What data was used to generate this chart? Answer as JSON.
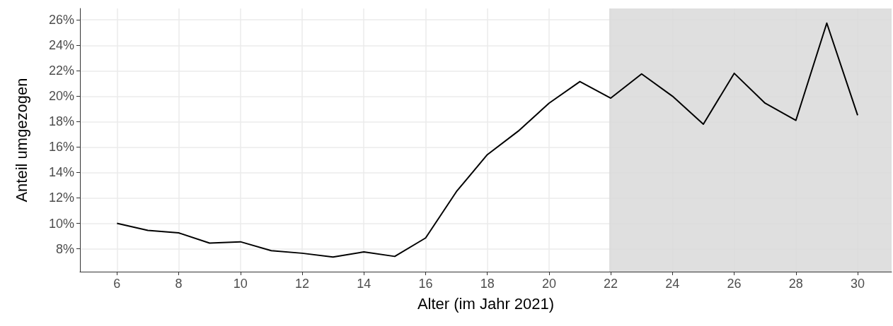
{
  "chart_data": {
    "type": "line",
    "xlabel": "Alter (im Jahr 2021)",
    "ylabel": "Anteil umgezogen",
    "x": [
      6,
      7,
      8,
      9,
      10,
      11,
      12,
      13,
      14,
      15,
      16,
      17,
      18,
      19,
      20,
      21,
      22,
      23,
      24,
      25,
      26,
      27,
      28,
      29,
      30
    ],
    "series": [
      {
        "color": "#000000",
        "values": [
          10.0,
          9.45,
          9.25,
          8.45,
          8.55,
          7.85,
          7.65,
          7.35,
          7.75,
          7.4,
          8.85,
          12.5,
          15.4,
          17.25,
          19.45,
          21.15,
          19.85,
          21.75,
          20.0,
          17.8,
          21.8,
          19.45,
          18.1,
          25.75,
          18.5
        ]
      }
    ],
    "xlim": [
      4.8,
      31.1
    ],
    "xticks": [
      6,
      8,
      10,
      12,
      14,
      16,
      18,
      20,
      22,
      24,
      26,
      28,
      30
    ],
    "ylim": [
      6.2,
      26.9
    ],
    "yticks": [
      {
        "value": 8,
        "label": "8%"
      },
      {
        "value": 10,
        "label": "10%"
      },
      {
        "value": 12,
        "label": "12%"
      },
      {
        "value": 14,
        "label": "14%"
      },
      {
        "value": 16,
        "label": "16%"
      },
      {
        "value": 18,
        "label": "18%"
      },
      {
        "value": 20,
        "label": "20%"
      },
      {
        "value": 22,
        "label": "22%"
      },
      {
        "value": 24,
        "label": "24%"
      },
      {
        "value": 26,
        "label": "26%"
      }
    ],
    "bands": [
      {
        "axis": "x",
        "from": 21.95,
        "to": 31.1,
        "color": "#d9d9d9"
      }
    ],
    "grid": true,
    "marker": "none",
    "line_style": "solid"
  }
}
